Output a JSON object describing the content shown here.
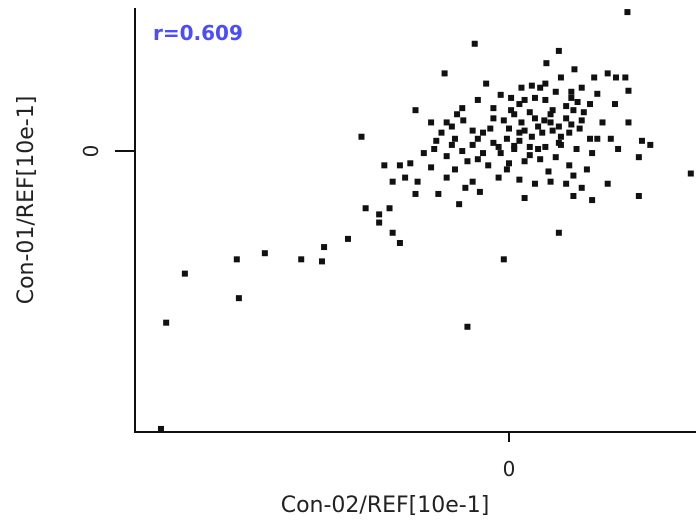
{
  "chart_data": {
    "type": "scatter",
    "xlabel": "Con-02/REF[10e-1]",
    "ylabel": "Con-01/REF[10e-1]",
    "x_ticks": [
      0
    ],
    "y_ticks": [
      0
    ],
    "xlim": [
      -3.6,
      1.8
    ],
    "ylim": [
      -2.75,
      1.4
    ],
    "grid": false,
    "annotation": {
      "text": "r=0.609",
      "color": "#4b4bff"
    },
    "point_color": "#111111",
    "points": [
      [
        1.14,
        1.36
      ],
      [
        -0.33,
        1.05
      ],
      [
        0.48,
        0.98
      ],
      [
        -0.62,
        0.76
      ],
      [
        0.63,
        0.8
      ],
      [
        0.82,
        0.72
      ],
      [
        1.03,
        0.72
      ],
      [
        1.15,
        0.59
      ],
      [
        1.12,
        0.72
      ],
      [
        0.3,
        0.62
      ],
      [
        0.22,
        0.64
      ],
      [
        -0.22,
        0.66
      ],
      [
        0.02,
        0.52
      ],
      [
        0.1,
        0.46
      ],
      [
        0.35,
        0.5
      ],
      [
        0.6,
        0.52
      ],
      [
        0.62,
        0.4
      ],
      [
        0.2,
        0.38
      ],
      [
        0.4,
        0.36
      ],
      [
        0.55,
        0.32
      ],
      [
        0.05,
        0.36
      ],
      [
        -0.15,
        0.32
      ],
      [
        -0.44,
        0.3
      ],
      [
        -0.55,
        0.24
      ],
      [
        -0.35,
        0.2
      ],
      [
        -0.25,
        0.18
      ],
      [
        0.0,
        0.22
      ],
      [
        0.15,
        0.2
      ],
      [
        0.28,
        0.24
      ],
      [
        0.42,
        0.2
      ],
      [
        0.5,
        0.14
      ],
      [
        -0.02,
        0.12
      ],
      [
        -0.15,
        0.08
      ],
      [
        -0.3,
        0.12
      ],
      [
        -0.52,
        0.12
      ],
      [
        -0.7,
        0.1
      ],
      [
        -1.42,
        0.14
      ],
      [
        0.78,
        0.12
      ],
      [
        0.98,
        0.12
      ],
      [
        1.28,
        0.1
      ],
      [
        1.36,
        0.06
      ],
      [
        0.4,
        0.28
      ],
      [
        0.25,
        0.32
      ],
      [
        -0.05,
        0.3
      ],
      [
        0.12,
        0.28
      ],
      [
        0.32,
        0.18
      ],
      [
        0.22,
        0.14
      ],
      [
        0.1,
        0.1
      ],
      [
        -0.1,
        0.04
      ],
      [
        -0.35,
        0.06
      ],
      [
        -0.55,
        0.06
      ],
      [
        -0.72,
        0.02
      ],
      [
        -0.82,
        -0.02
      ],
      [
        -0.6,
        -0.05
      ],
      [
        -0.45,
        0.0
      ],
      [
        -0.25,
        -0.02
      ],
      [
        -0.08,
        -0.02
      ],
      [
        0.05,
        0.02
      ],
      [
        0.2,
        0.04
      ],
      [
        0.35,
        0.04
      ],
      [
        0.5,
        0.06
      ],
      [
        0.65,
        0.02
      ],
      [
        0.8,
        -0.02
      ],
      [
        1.25,
        -0.06
      ],
      [
        1.75,
        -0.22
      ],
      [
        -0.4,
        -0.1
      ],
      [
        -0.2,
        -0.14
      ],
      [
        0.0,
        -0.12
      ],
      [
        0.15,
        -0.1
      ],
      [
        0.3,
        -0.08
      ],
      [
        0.45,
        -0.06
      ],
      [
        0.58,
        -0.14
      ],
      [
        0.75,
        -0.18
      ],
      [
        -0.75,
        -0.16
      ],
      [
        -0.95,
        -0.12
      ],
      [
        -1.05,
        -0.14
      ],
      [
        -1.2,
        -0.14
      ],
      [
        -1.0,
        -0.26
      ],
      [
        -1.12,
        -0.3
      ],
      [
        -0.88,
        -0.3
      ],
      [
        -0.6,
        -0.26
      ],
      [
        -0.35,
        -0.3
      ],
      [
        -0.1,
        -0.26
      ],
      [
        0.1,
        -0.28
      ],
      [
        0.25,
        -0.32
      ],
      [
        0.4,
        -0.3
      ],
      [
        0.55,
        -0.32
      ],
      [
        0.7,
        -0.36
      ],
      [
        -0.28,
        -0.4
      ],
      [
        -0.68,
        -0.42
      ],
      [
        -0.48,
        -0.52
      ],
      [
        0.15,
        -0.46
      ],
      [
        0.62,
        -0.44
      ],
      [
        0.8,
        -0.48
      ],
      [
        1.25,
        -0.44
      ],
      [
        -1.15,
        -0.56
      ],
      [
        -1.38,
        -0.56
      ],
      [
        -1.25,
        -0.7
      ],
      [
        -1.12,
        -0.8
      ],
      [
        -1.05,
        -0.9
      ],
      [
        -1.25,
        -0.62
      ],
      [
        -1.55,
        -0.86
      ],
      [
        -1.78,
        -0.94
      ],
      [
        -2.0,
        -1.06
      ],
      [
        -1.8,
        -1.08
      ],
      [
        -2.35,
        -1.0
      ],
      [
        -2.62,
        -1.06
      ],
      [
        -3.12,
        -1.2
      ],
      [
        -2.6,
        -1.44
      ],
      [
        -3.3,
        -1.68
      ],
      [
        -0.4,
        -1.72
      ],
      [
        -0.05,
        -1.06
      ],
      [
        0.48,
        -0.8
      ],
      [
        -3.35,
        -2.72
      ],
      [
        0.6,
        0.58
      ],
      [
        0.45,
        0.58
      ],
      [
        0.7,
        0.62
      ],
      [
        0.35,
        0.66
      ],
      [
        0.25,
        0.52
      ],
      [
        0.12,
        0.62
      ],
      [
        -0.08,
        0.55
      ],
      [
        0.55,
        0.44
      ],
      [
        0.72,
        0.38
      ],
      [
        0.85,
        0.56
      ],
      [
        1.02,
        0.46
      ],
      [
        0.9,
        0.28
      ],
      [
        0.68,
        0.22
      ],
      [
        0.58,
        0.18
      ],
      [
        0.15,
        0.5
      ],
      [
        -0.3,
        0.5
      ],
      [
        -0.45,
        0.42
      ],
      [
        -0.65,
        0.18
      ],
      [
        -0.5,
        0.36
      ],
      [
        -0.75,
        0.28
      ],
      [
        0.05,
        0.05
      ],
      [
        -0.02,
        -0.18
      ],
      [
        0.38,
        -0.2
      ],
      [
        0.62,
        -0.24
      ],
      [
        0.95,
        -0.32
      ],
      [
        -0.15,
        0.42
      ],
      [
        0.48,
        0.08
      ],
      [
        0.7,
        0.3
      ],
      [
        0.85,
        0.12
      ],
      [
        1.05,
        0.02
      ],
      [
        0.2,
        -0.04
      ],
      [
        -0.3,
        -0.08
      ],
      [
        -0.6,
        0.28
      ],
      [
        0.42,
        0.4
      ],
      [
        0.78,
        0.46
      ],
      [
        -0.52,
        -0.18
      ],
      [
        0.1,
        0.18
      ],
      [
        -0.18,
        0.22
      ],
      [
        0.28,
        0.02
      ],
      [
        0.5,
        0.72
      ],
      [
        0.36,
        0.86
      ],
      [
        -0.9,
        0.4
      ],
      [
        1.15,
        0.28
      ],
      [
        0.95,
        0.76
      ],
      [
        0.66,
        0.48
      ],
      [
        -0.42,
        -0.36
      ],
      [
        0.02,
        0.4
      ],
      [
        -0.9,
        -0.42
      ],
      [
        0.6,
        0.26
      ],
      [
        0.48,
        0.24
      ],
      [
        0.34,
        0.3
      ]
    ]
  }
}
